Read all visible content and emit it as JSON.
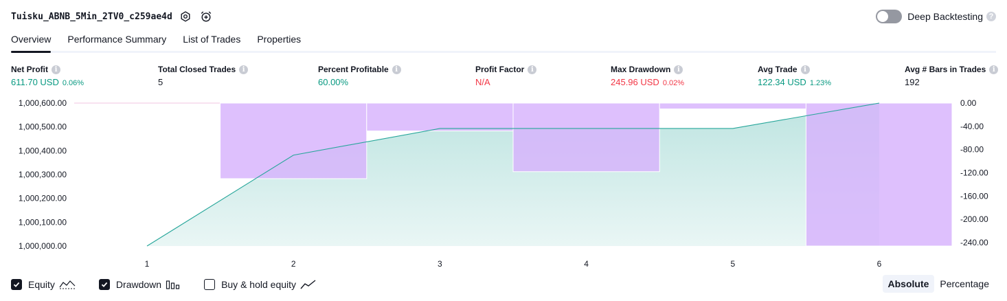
{
  "header": {
    "strategy_name": "Tuisku_ABNB_5Min_2TV0_c259ae4d",
    "settings_icon": "gear-icon",
    "alert_icon": "alarm-clock-plus-icon",
    "deep_backtesting_label": "Deep Backtesting",
    "deep_backtesting_enabled": false,
    "help_glyph": "?"
  },
  "tabs": [
    {
      "label": "Overview",
      "active": true
    },
    {
      "label": "Performance Summary",
      "active": false
    },
    {
      "label": "List of Trades",
      "active": false
    },
    {
      "label": "Properties",
      "active": false
    }
  ],
  "metrics": [
    {
      "label": "Net Profit",
      "value": "611.70 USD",
      "pct": "0.06%",
      "color": "#089981"
    },
    {
      "label": "Total Closed Trades",
      "value": "5",
      "pct": "",
      "color": "#131722"
    },
    {
      "label": "Percent Profitable",
      "value": "60.00%",
      "pct": "",
      "color": "#089981"
    },
    {
      "label": "Profit Factor",
      "value": "N/A",
      "pct": "",
      "color": "#f23645"
    },
    {
      "label": "Max Drawdown",
      "value": "245.96 USD",
      "pct": "0.02%",
      "color": "#f23645"
    },
    {
      "label": "Avg Trade",
      "value": "122.34 USD",
      "pct": "1.23%",
      "color": "#089981"
    },
    {
      "label": "Avg # Bars in Trades",
      "value": "192",
      "pct": "",
      "color": "#131722"
    }
  ],
  "info_glyph": "i",
  "chart_data": {
    "type": "area",
    "x": [
      1,
      2,
      3,
      4,
      5,
      6
    ],
    "x_tick_labels": [
      "1",
      "2",
      "3",
      "4",
      "5",
      "6"
    ],
    "series": [
      {
        "name": "Equity",
        "type": "area",
        "color": "#26a69a",
        "values": [
          1000000.0,
          1000389.0,
          1000503.0,
          1000503.0,
          1000503.0,
          1000611.7
        ]
      },
      {
        "name": "Drawdown",
        "type": "bar",
        "color": "#d7b2fc",
        "values": [
          0,
          -130,
          -48,
          -118,
          -10,
          -245.96
        ]
      }
    ],
    "y_left_ticks": [
      "1,000,600.00",
      "1,000,500.00",
      "1,000,400.00",
      "1,000,300.00",
      "1,000,200.00",
      "1,000,100.00",
      "1,000,000.00"
    ],
    "y_left_range": [
      1000000,
      1000611.7
    ],
    "y_right_ticks": [
      "0.00",
      "-40.00",
      "-80.00",
      "-120.00",
      "-160.00",
      "-200.00",
      "-240.00"
    ],
    "y_right_range": [
      -245.96,
      0
    ],
    "grid": false
  },
  "legend": [
    {
      "label": "Equity",
      "checked": true,
      "icon": "equity-area-icon"
    },
    {
      "label": "Drawdown",
      "checked": true,
      "icon": "drawdown-bars-icon"
    },
    {
      "label": "Buy & hold equity",
      "checked": false,
      "icon": "buy-hold-line-icon"
    }
  ],
  "modes": [
    {
      "label": "Absolute",
      "active": true
    },
    {
      "label": "Percentage",
      "active": false
    }
  ]
}
